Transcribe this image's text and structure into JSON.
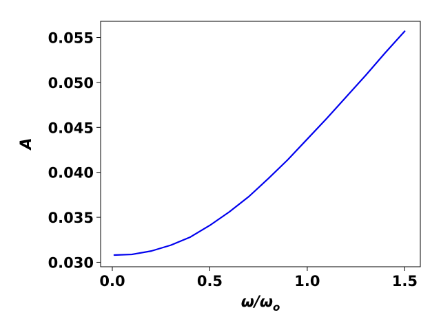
{
  "chart_data": {
    "type": "line",
    "xlabel": "ω/ω",
    "xlabel_sub": "o",
    "ylabel": "A",
    "xlim": [
      -0.06,
      1.58
    ],
    "ylim": [
      0.0295,
      0.0568
    ],
    "xticks": [
      0.0,
      0.5,
      1.0,
      1.5
    ],
    "xtick_labels": [
      "0.0",
      "0.5",
      "1.0",
      "1.5"
    ],
    "yticks": [
      0.03,
      0.035,
      0.04,
      0.045,
      0.05,
      0.055
    ],
    "ytick_labels": [
      "0.030",
      "0.035",
      "0.040",
      "0.045",
      "0.050",
      "0.055"
    ],
    "grid": false,
    "series": [
      {
        "color": "#0000ee",
        "x": [
          0.01,
          0.1,
          0.2,
          0.3,
          0.4,
          0.5,
          0.6,
          0.7,
          0.8,
          0.9,
          1.0,
          1.1,
          1.2,
          1.3,
          1.4,
          1.5
        ],
        "y": [
          0.0308,
          0.03087,
          0.03125,
          0.0319,
          0.0328,
          0.0341,
          0.0356,
          0.0373,
          0.0393,
          0.0414,
          0.0437,
          0.046,
          0.0484,
          0.0508,
          0.0533,
          0.0557
        ]
      }
    ]
  }
}
